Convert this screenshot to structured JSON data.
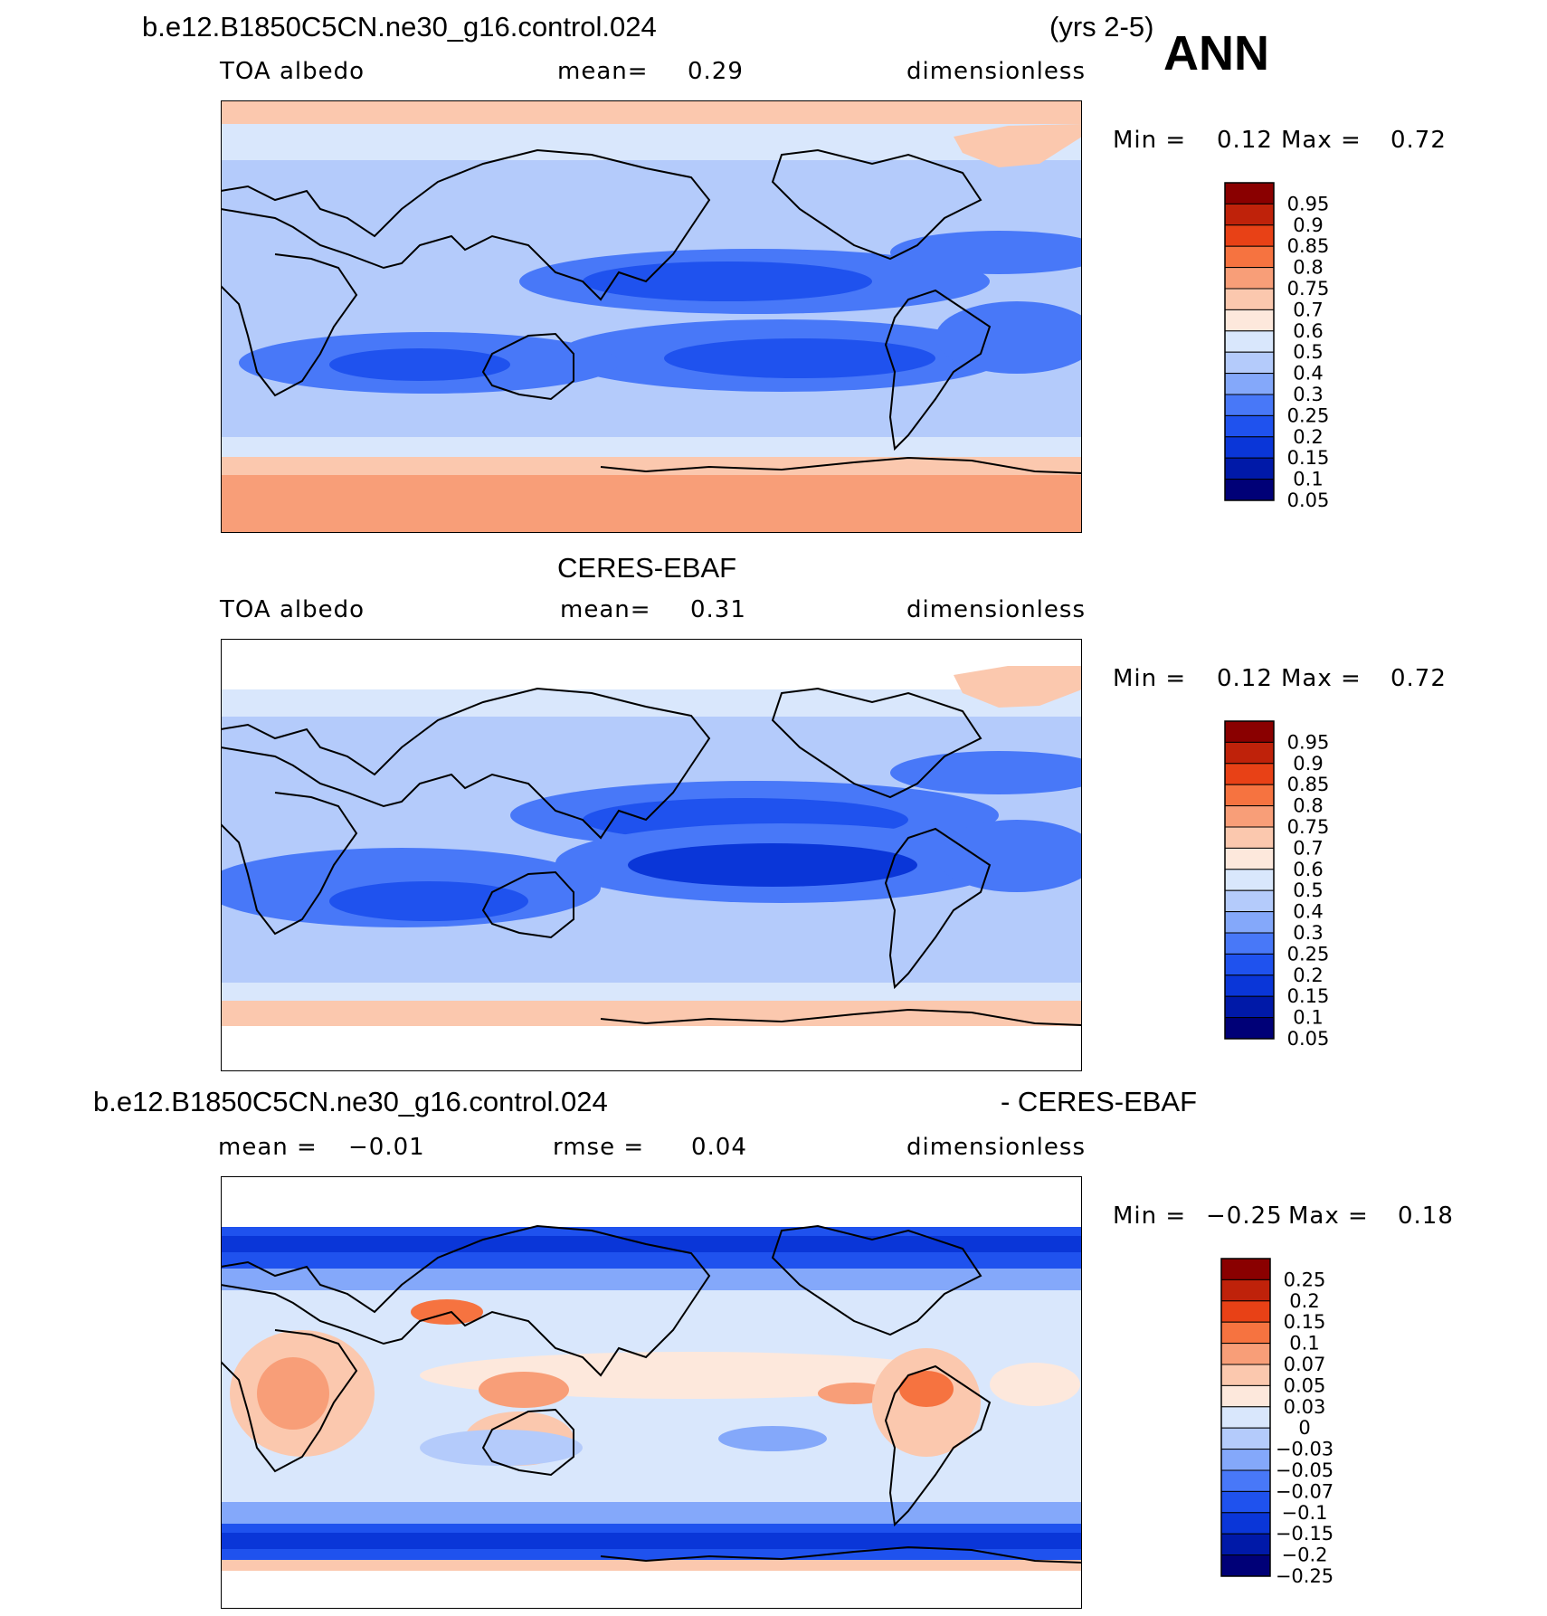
{
  "header": {
    "case_name": "b.e12.B1850C5CN.ne30_g16.control.024",
    "years": "(yrs 2-5)",
    "season": "ANN"
  },
  "panels": [
    {
      "id": "model",
      "title": "",
      "variable": "TOA albedo",
      "stat1_label": "mean=",
      "stat1_value": "0.29",
      "stat2_label": "",
      "stat2_value": "",
      "units": "dimensionless",
      "min_label": "Min =",
      "min_value": "0.12",
      "max_label": "Max =",
      "max_value": "0.72",
      "colorbar_ticks": [
        "0.95",
        "0.9",
        "0.85",
        "0.8",
        "0.75",
        "0.7",
        "0.6",
        "0.5",
        "0.4",
        "0.3",
        "0.25",
        "0.2",
        "0.15",
        "0.1",
        "0.05"
      ]
    },
    {
      "id": "obs",
      "title": "CERES-EBAF",
      "variable": "TOA albedo",
      "stat1_label": "mean=",
      "stat1_value": "0.31",
      "stat2_label": "",
      "stat2_value": "",
      "units": "dimensionless",
      "min_label": "Min =",
      "min_value": "0.12",
      "max_label": "Max =",
      "max_value": "0.72",
      "colorbar_ticks": [
        "0.95",
        "0.9",
        "0.85",
        "0.8",
        "0.75",
        "0.7",
        "0.6",
        "0.5",
        "0.4",
        "0.3",
        "0.25",
        "0.2",
        "0.15",
        "0.1",
        "0.05"
      ]
    },
    {
      "id": "diff",
      "title_left": "b.e12.B1850C5CN.ne30_g16.control.024",
      "title_right": "- CERES-EBAF",
      "stat1_label": "mean =",
      "stat1_value": "−0.01",
      "stat2_label": "rmse =",
      "stat2_value": "0.04",
      "units": "dimensionless",
      "min_label": "Min =",
      "min_value": "−0.25",
      "max_label": "Max =",
      "max_value": "0.18",
      "colorbar_ticks": [
        "0.25",
        "0.2",
        "0.15",
        "0.1",
        "0.07",
        "0.05",
        "0.03",
        "0",
        "−0.03",
        "−0.05",
        "−0.07",
        "−0.1",
        "−0.15",
        "−0.2",
        "−0.25"
      ]
    }
  ],
  "colors": {
    "palette": [
      "#000077",
      "#0019a8",
      "#0a36d8",
      "#1f52ee",
      "#4878f8",
      "#84a8fa",
      "#b4cbfb",
      "#d9e7fc",
      "#fde8dc",
      "#fbc8ae",
      "#f89e78",
      "#f67340",
      "#e84116",
      "#bf220a",
      "#8a0000"
    ],
    "coastline": "#000000"
  }
}
